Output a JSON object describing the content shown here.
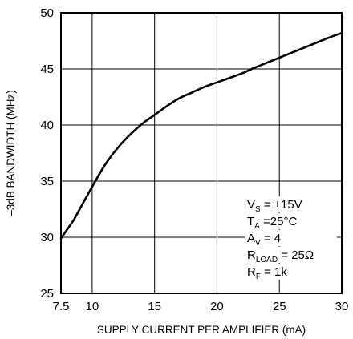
{
  "chart_data": {
    "type": "line",
    "title": "",
    "xlabel": "SUPPLY CURRENT PER AMPLIFIER (mA)",
    "ylabel": "–3dB BANDWIDTH (MHz)",
    "xlim": [
      7.5,
      30
    ],
    "ylim": [
      25,
      50
    ],
    "x_ticks": [
      7.5,
      10,
      15,
      20,
      25,
      30
    ],
    "x_tick_labels": [
      "7.5",
      "10",
      "15",
      "20",
      "25",
      "30"
    ],
    "y_ticks": [
      25,
      30,
      35,
      40,
      45,
      50
    ],
    "y_tick_labels": [
      "25",
      "30",
      "35",
      "40",
      "45",
      "50"
    ],
    "grid": true,
    "series": [
      {
        "x": [
          7.5,
          8,
          8.5,
          9,
          9.5,
          10,
          11,
          12,
          13,
          14,
          15,
          16,
          17,
          18,
          19,
          20,
          21,
          22,
          22.5,
          23,
          24,
          25,
          26,
          27,
          28,
          29,
          30
        ],
        "y": [
          29.9,
          30.7,
          31.5,
          32.5,
          33.5,
          34.5,
          36.4,
          37.9,
          39.1,
          40.1,
          40.9,
          41.7,
          42.4,
          42.9,
          43.4,
          43.8,
          44.2,
          44.6,
          44.85,
          45.1,
          45.55,
          46.0,
          46.45,
          46.9,
          47.35,
          47.8,
          48.2
        ]
      }
    ],
    "annotations": [
      {
        "parts": [
          [
            "V",
            false
          ],
          [
            "S",
            true
          ],
          [
            " = ±15V",
            false
          ]
        ]
      },
      {
        "parts": [
          [
            "T",
            false
          ],
          [
            "A",
            true
          ],
          [
            " =25°C",
            false
          ]
        ]
      },
      {
        "parts": [
          [
            "A",
            false
          ],
          [
            "V",
            true
          ],
          [
            " = 4",
            false
          ]
        ]
      },
      {
        "parts": [
          [
            "R",
            false
          ],
          [
            "LOAD",
            true
          ],
          [
            " = 25Ω",
            false
          ]
        ]
      },
      {
        "parts": [
          [
            "R",
            false
          ],
          [
            "F",
            true
          ],
          [
            " = 1k",
            false
          ]
        ]
      }
    ],
    "line_color": "#000000",
    "grid_color": "#000000"
  }
}
